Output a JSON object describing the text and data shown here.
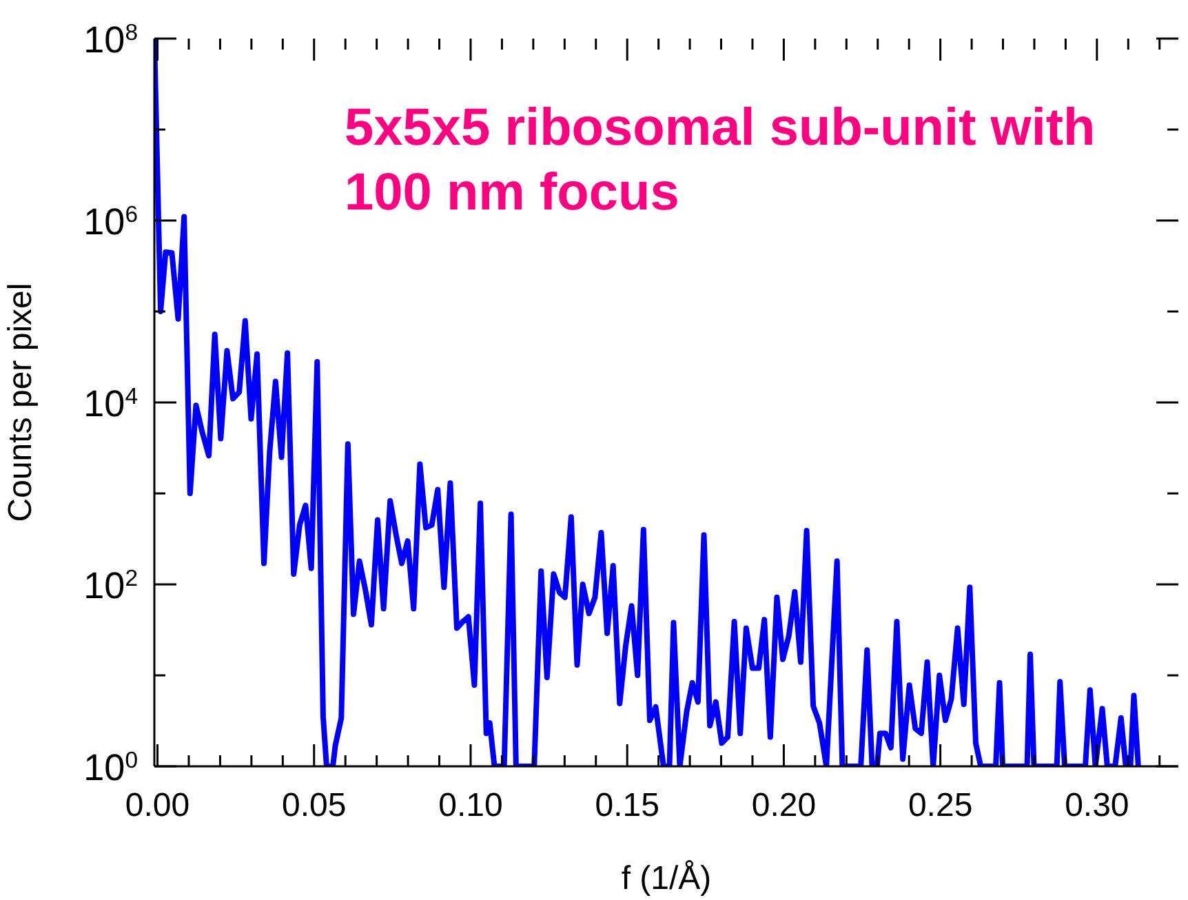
{
  "chart_data": {
    "type": "line",
    "xlabel": "f (1/Å)",
    "ylabel": "Counts per pixel",
    "annotations": [
      "5x5x5 ribosomal sub-unit with 100 nm focus"
    ],
    "log": "y",
    "marker": "none",
    "line_style": "solid",
    "xlim": [
      -0.001,
      0.326
    ],
    "xticks": [
      {
        "value": 0,
        "label": "0.00"
      },
      {
        "value": 0.01,
        "label": null
      },
      {
        "value": 0.02,
        "label": null
      },
      {
        "value": 0.03,
        "label": null
      },
      {
        "value": 0.04,
        "label": null
      },
      {
        "value": 0.05,
        "label": "0.05"
      },
      {
        "value": 0.06,
        "label": null
      },
      {
        "value": 0.07,
        "label": null
      },
      {
        "value": 0.08,
        "label": null
      },
      {
        "value": 0.09,
        "label": null
      },
      {
        "value": 0.1,
        "label": "0.10"
      },
      {
        "value": 0.11,
        "label": null
      },
      {
        "value": 0.12,
        "label": null
      },
      {
        "value": 0.13,
        "label": null
      },
      {
        "value": 0.14,
        "label": null
      },
      {
        "value": 0.15,
        "label": "0.15"
      },
      {
        "value": 0.16,
        "label": null
      },
      {
        "value": 0.17,
        "label": null
      },
      {
        "value": 0.18,
        "label": null
      },
      {
        "value": 0.19,
        "label": null
      },
      {
        "value": 0.2,
        "label": "0.20"
      },
      {
        "value": 0.21,
        "label": null
      },
      {
        "value": 0.22,
        "label": null
      },
      {
        "value": 0.23,
        "label": null
      },
      {
        "value": 0.24,
        "label": null
      },
      {
        "value": 0.25,
        "label": "0.25"
      },
      {
        "value": 0.26,
        "label": null
      },
      {
        "value": 0.27,
        "label": null
      },
      {
        "value": 0.28,
        "label": null
      },
      {
        "value": 0.29,
        "label": null
      },
      {
        "value": 0.3,
        "label": "0.30"
      },
      {
        "value": 0.31,
        "label": null
      },
      {
        "value": 0.32,
        "label": null
      }
    ],
    "ylim": [
      1,
      100000000
    ],
    "yticks": [
      {
        "value": 1,
        "label": "10$^{0}$"
      },
      {
        "value": 10,
        "label": null
      },
      {
        "value": 100,
        "label": "10$^{2}$"
      },
      {
        "value": 1000,
        "label": null
      },
      {
        "value": 10000,
        "label": "10$^{4}$"
      },
      {
        "value": 100000,
        "label": null
      },
      {
        "value": 1000000,
        "label": "10$^{6}$"
      },
      {
        "value": 10000000,
        "label": null
      },
      {
        "value": 100000000,
        "label": "10$^{8}$"
      }
    ],
    "series": [
      {
        "color": "#0000ff",
        "x": [
          -0.001,
          0.001,
          0.0026,
          0.0046,
          0.0066,
          0.0085,
          0.0104,
          0.0123,
          0.0143,
          0.0164,
          0.0183,
          0.0202,
          0.0222,
          0.0241,
          0.0261,
          0.028,
          0.0299,
          0.0318,
          0.034,
          0.0358,
          0.0377,
          0.0396,
          0.0415,
          0.0435,
          0.0454,
          0.0473,
          0.0491,
          0.051,
          0.0529,
          0.054,
          0.056,
          0.0568,
          0.0587,
          0.0608,
          0.0626,
          0.0645,
          0.0664,
          0.0683,
          0.0703,
          0.0722,
          0.0743,
          0.0762,
          0.078,
          0.0799,
          0.0818,
          0.0838,
          0.0857,
          0.0876,
          0.0895,
          0.0915,
          0.0935,
          0.0956,
          0.0975,
          0.0993,
          0.1012,
          0.1031,
          0.105,
          0.1061,
          0.1076,
          0.1107,
          0.1129,
          0.1145,
          0.1203,
          0.1225,
          0.1244,
          0.1265,
          0.1284,
          0.1301,
          0.1321,
          0.134,
          0.1358,
          0.1378,
          0.1397,
          0.1417,
          0.1436,
          0.1455,
          0.1476,
          0.1495,
          0.1514,
          0.1533,
          0.1552,
          0.1572,
          0.1591,
          0.1616,
          0.1635,
          0.1648,
          0.1668,
          0.169,
          0.1708,
          0.1726,
          0.1745,
          0.1764,
          0.1783,
          0.1802,
          0.1821,
          0.1842,
          0.1861,
          0.188,
          0.19,
          0.192,
          0.1938,
          0.1957,
          0.1978,
          0.1997,
          0.2016,
          0.2035,
          0.2054,
          0.2073,
          0.2094,
          0.2114,
          0.2136,
          0.217,
          0.2187,
          0.2246,
          0.2266,
          0.2282,
          0.2298,
          0.2307,
          0.2325,
          0.2342,
          0.2361,
          0.238,
          0.2401,
          0.242,
          0.2439,
          0.2458,
          0.2477,
          0.2497,
          0.2516,
          0.2535,
          0.2555,
          0.2575,
          0.2594,
          0.2613,
          0.2629,
          0.2677,
          0.2689,
          0.2699,
          0.2777,
          0.2787,
          0.2799,
          0.2872,
          0.2882,
          0.2897,
          0.2963,
          0.2978,
          0.2995,
          0.3017,
          0.3033,
          0.3058,
          0.3077,
          0.3092,
          0.3107,
          0.3118,
          0.3132
        ],
        "values": [
          100000000,
          100000,
          450000,
          440000,
          83000,
          1100000,
          1000,
          9300,
          4700,
          2600,
          56000,
          4000,
          37000,
          11000,
          13000,
          79000,
          6600,
          34000,
          170,
          2800,
          17000,
          2500,
          35000,
          130,
          450,
          740,
          150,
          28000,
          3.5,
          1,
          1,
          1.7,
          3.4,
          3500,
          47,
          180,
          87,
          36,
          510,
          54,
          830,
          350,
          170,
          300,
          54,
          2100,
          420,
          450,
          1100,
          93,
          1300,
          33,
          39,
          44,
          7.8,
          780,
          2.3,
          3,
          1,
          1,
          590,
          1,
          1,
          140,
          9.5,
          130,
          81,
          72,
          550,
          13,
          100,
          48,
          72,
          370,
          29,
          160,
          4.9,
          21,
          58,
          10,
          400,
          3.2,
          4.5,
          1,
          1,
          38,
          1,
          4,
          8.3,
          5.1,
          350,
          2.8,
          5.1,
          1.8,
          2.1,
          39,
          2.3,
          33,
          12,
          12,
          41,
          2.1,
          72,
          15,
          27,
          83,
          14,
          390,
          4.6,
          3,
          1,
          180,
          1,
          1,
          19,
          1,
          1,
          2.3,
          2.3,
          1.6,
          39,
          1.2,
          7.8,
          2.6,
          2.3,
          14,
          1,
          10,
          3.2,
          5.5,
          33,
          4.8,
          93,
          1.8,
          1,
          1,
          8.3,
          1,
          1,
          17,
          1,
          1,
          8.5,
          1,
          1,
          6.9,
          1,
          4.3,
          1,
          1,
          3.4,
          1,
          1,
          6,
          1
        ]
      }
    ]
  }
}
